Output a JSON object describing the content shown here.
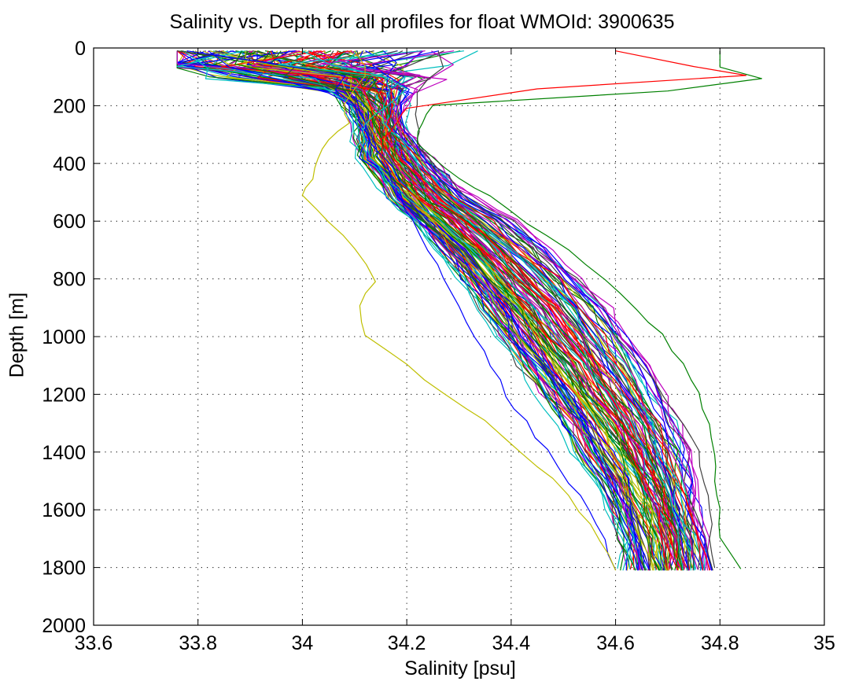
{
  "chart_data": {
    "type": "line",
    "title": "Salinity vs. Depth for all profiles for float WMOId: 3900635",
    "xlabel": "Salinity [psu]",
    "ylabel": "Depth [m]",
    "xlim": [
      33.6,
      35.0
    ],
    "ylim": [
      0,
      2000
    ],
    "y_reversed": true,
    "grid": "dotted",
    "legend": "none",
    "xticks": [
      "33.6",
      "33.8",
      "34",
      "34.2",
      "34.4",
      "34.6",
      "34.8",
      "35"
    ],
    "yticks": [
      "0",
      "200",
      "400",
      "600",
      "800",
      "1000",
      "1200",
      "1400",
      "1600",
      "1800",
      "2000"
    ],
    "xtick_values": [
      33.6,
      33.8,
      34.0,
      34.2,
      34.4,
      34.6,
      34.8,
      35.0
    ],
    "ytick_values": [
      0,
      200,
      400,
      600,
      800,
      1000,
      1200,
      1400,
      1600,
      1800,
      2000
    ],
    "series_count_approx": 130,
    "colors": [
      "#0000ff",
      "#008000",
      "#ff0000",
      "#00bfbf",
      "#bf00bf",
      "#bfbf00",
      "#404040"
    ],
    "depths": [
      10,
      60,
      100,
      150,
      200,
      260,
      320,
      380,
      450,
      520,
      600,
      700,
      800,
      900,
      1000,
      1100,
      1200,
      1300,
      1400,
      1500,
      1600,
      1700,
      1810
    ],
    "representative_profiles": [
      {
        "salinity": [
          33.82,
          33.86,
          33.95,
          34.05,
          34.1,
          34.12,
          34.13,
          34.15,
          34.17,
          34.19,
          34.21,
          34.24,
          34.27,
          34.3,
          34.33,
          34.36,
          34.39,
          34.43,
          34.47,
          34.51,
          34.55,
          34.58,
          34.6
        ]
      },
      {
        "salinity": [
          34.0,
          34.05,
          34.15,
          34.2,
          34.16,
          34.12,
          34.12,
          34.13,
          34.16,
          34.2,
          34.26,
          34.33,
          34.39,
          34.44,
          34.49,
          34.54,
          34.59,
          34.63,
          34.66,
          34.69,
          34.71,
          34.72,
          34.73
        ]
      },
      {
        "salinity": [
          34.26,
          34.27,
          34.24,
          34.22,
          34.22,
          34.22,
          34.22,
          34.24,
          34.28,
          34.32,
          34.38,
          34.45,
          34.5,
          34.55,
          34.6,
          34.65,
          34.69,
          34.73,
          34.76,
          34.77,
          34.78,
          34.78,
          34.79
        ]
      },
      {
        "salinity": [
          34.6,
          34.75,
          34.85,
          34.45,
          34.2,
          34.18,
          34.15,
          34.15,
          34.18,
          34.22,
          34.28,
          34.35,
          34.41,
          34.47,
          34.52,
          34.57,
          34.62,
          34.66,
          34.7,
          34.72,
          34.74,
          34.76,
          34.78
        ]
      },
      {
        "salinity": [
          34.1,
          34.12,
          34.12,
          34.1,
          34.08,
          34.09,
          34.05,
          34.03,
          34.02,
          34.0,
          34.05,
          34.1,
          34.14,
          34.11,
          34.12,
          34.2,
          34.27,
          34.35,
          34.42,
          34.48,
          34.53,
          34.57,
          34.6
        ]
      },
      {
        "salinity": [
          34.8,
          34.8,
          34.88,
          34.7,
          34.25,
          34.23,
          34.22,
          34.25,
          34.3,
          34.36,
          34.43,
          34.51,
          34.58,
          34.64,
          34.69,
          34.73,
          34.76,
          34.78,
          34.79,
          34.79,
          34.8,
          34.8,
          34.84
        ]
      }
    ]
  }
}
